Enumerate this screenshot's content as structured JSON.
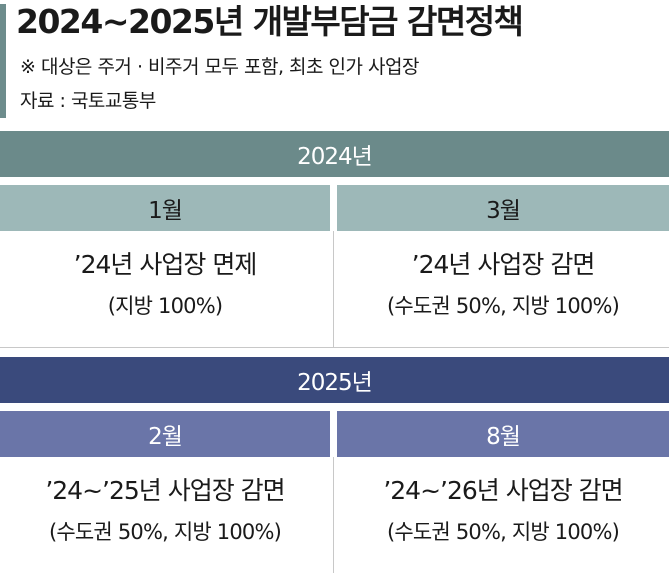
{
  "header": {
    "title": "2024~2025년 개발부담금 감면정책",
    "subtitle": "※ 대상은 주거 · 비주거 모두 포함, 최초 인가 사업장",
    "source": "자료 : 국토교통부"
  },
  "sections": [
    {
      "year": "2024년",
      "months": [
        {
          "month": "1월",
          "main": "’24년 사업장 면제",
          "sub": "(지방 100%)"
        },
        {
          "month": "3월",
          "main": "’24년 사업장 감면",
          "sub": "(수도권 50%, 지방 100%)"
        }
      ]
    },
    {
      "year": "2025년",
      "months": [
        {
          "month": "2월",
          "main": "’24~’25년 사업장 감면",
          "sub": "(수도권 50%, 지방 100%)"
        },
        {
          "month": "8월",
          "main": "’24~’26년 사업장 감면",
          "sub": "(수도권 50%, 지방 100%)"
        }
      ]
    }
  ],
  "colors": {
    "accent_bar": "#6d8c8c",
    "year_2024_bar": "#6b8a8a",
    "month_2024_cell": "#9db8b8",
    "year_2025_bar": "#3a4a7c",
    "month_2025_cell": "#6a75a8"
  }
}
